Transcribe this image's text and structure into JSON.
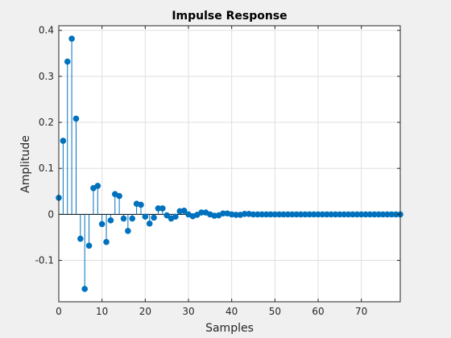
{
  "chart_data": {
    "type": "stem",
    "title": "Impulse Response",
    "xlabel": "Samples",
    "ylabel": "Amplitude",
    "xlim": [
      0,
      79
    ],
    "ylim": [
      -0.19,
      0.41
    ],
    "grid": true,
    "x_ticks": [
      0,
      10,
      20,
      30,
      40,
      50,
      60,
      70
    ],
    "x_tick_labels": [
      "0",
      "10",
      "20",
      "30",
      "40",
      "50",
      "60",
      "70"
    ],
    "y_ticks": [
      -0.1,
      0,
      0.1,
      0.2,
      0.3,
      0.4
    ],
    "y_tick_labels": [
      "-0.1",
      "0",
      "0.1",
      "0.2",
      "0.3",
      "0.4"
    ],
    "series": [
      {
        "color": "#0072bd",
        "x": [
          0,
          1,
          2,
          3,
          4,
          5,
          6,
          7,
          8,
          9,
          10,
          11,
          12,
          13,
          14,
          15,
          16,
          17,
          18,
          19,
          20,
          21,
          22,
          23,
          24,
          25,
          26,
          27,
          28,
          29,
          30,
          31,
          32,
          33,
          34,
          35,
          36,
          37,
          38,
          39,
          40,
          41,
          42,
          43,
          44,
          45,
          46,
          47,
          48,
          49,
          50,
          51,
          52,
          53,
          54,
          55,
          56,
          57,
          58,
          59,
          60,
          61,
          62,
          63,
          64,
          65,
          66,
          67,
          68,
          69,
          70,
          71,
          72,
          73,
          74,
          75,
          76,
          77,
          78,
          79
        ],
        "values": [
          0.036,
          0.16,
          0.332,
          0.382,
          0.208,
          -0.053,
          -0.162,
          -0.068,
          0.057,
          0.062,
          -0.021,
          -0.06,
          -0.013,
          0.044,
          0.04,
          -0.009,
          -0.036,
          -0.009,
          0.023,
          0.021,
          -0.005,
          -0.02,
          -0.007,
          0.013,
          0.013,
          -0.002,
          -0.009,
          -0.005,
          0.007,
          0.008,
          0.0,
          -0.004,
          -0.001,
          0.004,
          0.004,
          0.0,
          -0.003,
          -0.002,
          0.002,
          0.002,
          0.0,
          -0.001,
          -0.001,
          0.001,
          0.001,
          0.0,
          0.0,
          0.0,
          0.0,
          0.0,
          0.0,
          0.0,
          0.0,
          0.0,
          0.0,
          0.0,
          0.0,
          0.0,
          0.0,
          0.0,
          0.0,
          0.0,
          0.0,
          0.0,
          0.0,
          0.0,
          0.0,
          0.0,
          0.0,
          0.0,
          0.0,
          0.0,
          0.0,
          0.0,
          0.0,
          0.0,
          0.0,
          0.0,
          0.0,
          0.0
        ]
      }
    ]
  }
}
